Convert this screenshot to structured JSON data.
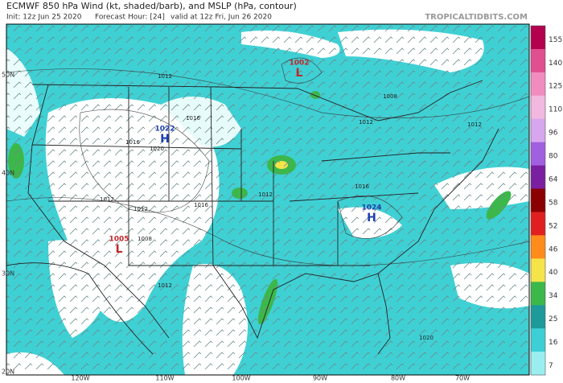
{
  "header": {
    "title": "ECMWF 850 hPa Wind (kt, shaded/barb), and MSLP (hPa, contour)",
    "init": "Init: 12z Jun 25 2020",
    "forecast": "Forecast Hour: [24]",
    "valid": "valid at 12z Fri, Jun 26 2020",
    "site": "TROPICALTIDBITS.COM"
  },
  "map": {
    "lat_labels": [
      "50N",
      "40N",
      "30N",
      "20N"
    ],
    "lon_labels": [
      "120W",
      "110W",
      "100W",
      "90W",
      "80W",
      "70W"
    ],
    "pressure_centers": [
      {
        "symbol": "L",
        "value": "1002",
        "color": "#c0282c"
      },
      {
        "symbol": "H",
        "value": "1022",
        "color": "#1f3fb0"
      },
      {
        "symbol": "H",
        "value": "1024",
        "color": "#1f3fb0"
      },
      {
        "symbol": "L",
        "value": "1005",
        "color": "#c0282c"
      }
    ],
    "isobar_labels": [
      "1012",
      "1016",
      "1008",
      "1012",
      "1016",
      "1020",
      "1012",
      "1012",
      "1016",
      "1012",
      "1008",
      "1012",
      "1020",
      "1016",
      "1012"
    ]
  },
  "colorbar": {
    "labels": [
      "155",
      "140",
      "125",
      "110",
      "96",
      "80",
      "64",
      "58",
      "52",
      "46",
      "40",
      "34",
      "25",
      "16",
      "7"
    ],
    "colors": [
      "#b3004f",
      "#e04f8f",
      "#f08cc0",
      "#f2b8e0",
      "#d6a6ef",
      "#a060e0",
      "#7a1fa0",
      "#8b0000",
      "#e02020",
      "#ff8c1a",
      "#f5e34a",
      "#3cb84a",
      "#1f9a9a",
      "#3ccfd6",
      "#9beef0"
    ]
  }
}
